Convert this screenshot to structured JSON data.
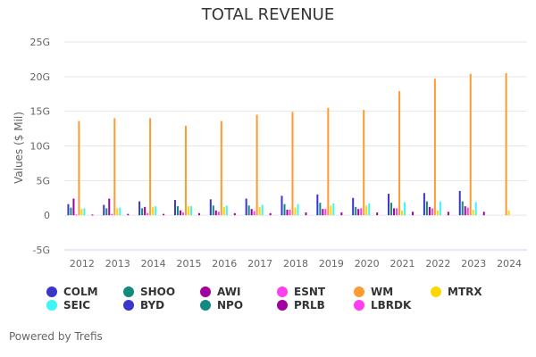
{
  "chart_data": {
    "type": "bar",
    "title": "TOTAL REVENUE",
    "xlabel": "",
    "ylabel": "Values ($ Mil)",
    "ylim": [
      -5,
      25
    ],
    "yticks": [
      -5,
      0,
      5,
      10,
      15,
      20,
      25
    ],
    "ytick_labels": [
      "-5G",
      "0",
      "5G",
      "10G",
      "15G",
      "20G",
      "25G"
    ],
    "grid": true,
    "legend_position": "bottom",
    "categories": [
      "2012",
      "2013",
      "2014",
      "2015",
      "2016",
      "2017",
      "2018",
      "2019",
      "2020",
      "2021",
      "2022",
      "2023",
      "2024"
    ],
    "series": [
      {
        "name": "COLM",
        "color": "#3a36c8",
        "values": [
          1.6,
          1.5,
          2.0,
          2.2,
          2.3,
          2.4,
          2.8,
          3.0,
          2.5,
          3.1,
          3.2,
          3.5,
          null
        ]
      },
      {
        "name": "SHOO",
        "color": "#128a80",
        "values": [
          1.1,
          1.0,
          1.0,
          1.3,
          1.4,
          1.4,
          1.6,
          1.8,
          1.2,
          1.8,
          2.0,
          2.0,
          null
        ]
      },
      {
        "name": "AWI",
        "color": "#a000a0",
        "values": [
          2.4,
          2.4,
          1.2,
          0.7,
          0.7,
          0.9,
          0.8,
          0.9,
          0.9,
          1.0,
          1.2,
          1.3,
          null
        ]
      },
      {
        "name": "ESNT",
        "color": "#ff3ef0",
        "values": [
          0.1,
          0.2,
          0.3,
          0.4,
          0.5,
          0.6,
          0.8,
          0.9,
          1.0,
          1.0,
          1.0,
          1.1,
          null
        ]
      },
      {
        "name": "WM",
        "color": "#ff9a33",
        "values": [
          13.6,
          14.0,
          14.0,
          12.9,
          13.6,
          14.5,
          14.9,
          15.5,
          15.2,
          17.9,
          19.7,
          20.4,
          20.5
        ]
      },
      {
        "name": "MTRX",
        "color": "#ffd700",
        "values": [
          0.9,
          1.0,
          1.2,
          1.3,
          1.2,
          1.2,
          1.1,
          1.4,
          1.4,
          0.7,
          0.7,
          0.8,
          0.7
        ]
      },
      {
        "name": "SEIC",
        "color": "#3ef6f6",
        "values": [
          1.0,
          1.1,
          1.3,
          1.3,
          1.4,
          1.5,
          1.6,
          1.7,
          1.7,
          1.9,
          2.0,
          1.9,
          null
        ]
      },
      {
        "name": "BYD",
        "color": "#3a36c8",
        "values": [
          null,
          null,
          null,
          null,
          null,
          null,
          null,
          null,
          null,
          null,
          null,
          null,
          null
        ]
      },
      {
        "name": "NPO",
        "color": "#128a80",
        "values": [
          null,
          null,
          null,
          null,
          null,
          null,
          null,
          null,
          null,
          null,
          null,
          null,
          null
        ]
      },
      {
        "name": "PRLB",
        "color": "#a000a0",
        "values": [
          0.1,
          0.2,
          0.2,
          0.3,
          0.3,
          0.3,
          0.4,
          0.4,
          0.4,
          0.5,
          0.5,
          0.5,
          null
        ]
      },
      {
        "name": "LBRDK",
        "color": "#ff3ef0",
        "values": [
          null,
          null,
          null,
          null,
          null,
          null,
          null,
          null,
          null,
          null,
          null,
          null,
          null
        ]
      }
    ]
  },
  "legend": [
    {
      "name": "COLM",
      "color": "#3a36c8"
    },
    {
      "name": "SHOO",
      "color": "#128a80"
    },
    {
      "name": "AWI",
      "color": "#a000a0"
    },
    {
      "name": "ESNT",
      "color": "#ff3ef0"
    },
    {
      "name": "WM",
      "color": "#ff9a33"
    },
    {
      "name": "MTRX",
      "color": "#ffd700"
    },
    {
      "name": "SEIC",
      "color": "#3ef6f6"
    },
    {
      "name": "BYD",
      "color": "#3a36c8"
    },
    {
      "name": "NPO",
      "color": "#128a80"
    },
    {
      "name": "PRLB",
      "color": "#a000a0"
    },
    {
      "name": "LBRDK",
      "color": "#ff3ef0"
    }
  ],
  "footer": {
    "text": "Powered by Trefis"
  }
}
